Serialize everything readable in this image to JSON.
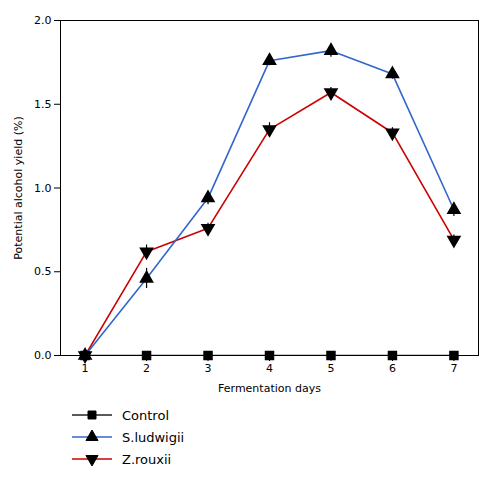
{
  "chart_data": {
    "type": "line",
    "xlabel": "Fermentation days",
    "ylabel": "Potential alcohol yield (%)",
    "x": [
      1,
      2,
      3,
      4,
      5,
      6,
      7
    ],
    "xlim": [
      0.6,
      7.4
    ],
    "xticks": [
      1,
      2,
      3,
      4,
      5,
      6,
      7
    ],
    "ylim": [
      0.0,
      2.0
    ],
    "yticks": [
      {
        "value": 0.0,
        "label": "0.0"
      },
      0.5,
      {
        "value": 1.0,
        "label": "1.0"
      },
      1.5,
      {
        "value": 2.0,
        "label": "2.0"
      }
    ],
    "legend": "lower left",
    "series": [
      {
        "name": "Control",
        "color": "#222222",
        "marker": "square",
        "values": [
          0.0,
          0.0,
          0.0,
          0.0,
          0.0,
          0.0,
          0.0
        ],
        "errors": [
          0.0,
          0.0,
          0.0,
          0.0,
          0.0,
          0.0,
          0.0
        ]
      },
      {
        "name": "S.ludwigii",
        "color": "#3366cc",
        "marker": "triangle-up",
        "values": [
          0.0,
          0.46,
          0.94,
          1.76,
          1.82,
          1.68,
          0.87
        ],
        "errors": [
          0.0,
          0.06,
          0.04,
          0.03,
          0.04,
          0.03,
          0.04
        ]
      },
      {
        "name": "Z.rouxii",
        "color": "#cc0000",
        "marker": "triangle-down",
        "values": [
          0.0,
          0.62,
          0.76,
          1.35,
          1.57,
          1.33,
          0.69
        ],
        "errors": [
          0.0,
          0.04,
          0.03,
          0.04,
          0.03,
          0.03,
          0.03
        ]
      }
    ]
  }
}
